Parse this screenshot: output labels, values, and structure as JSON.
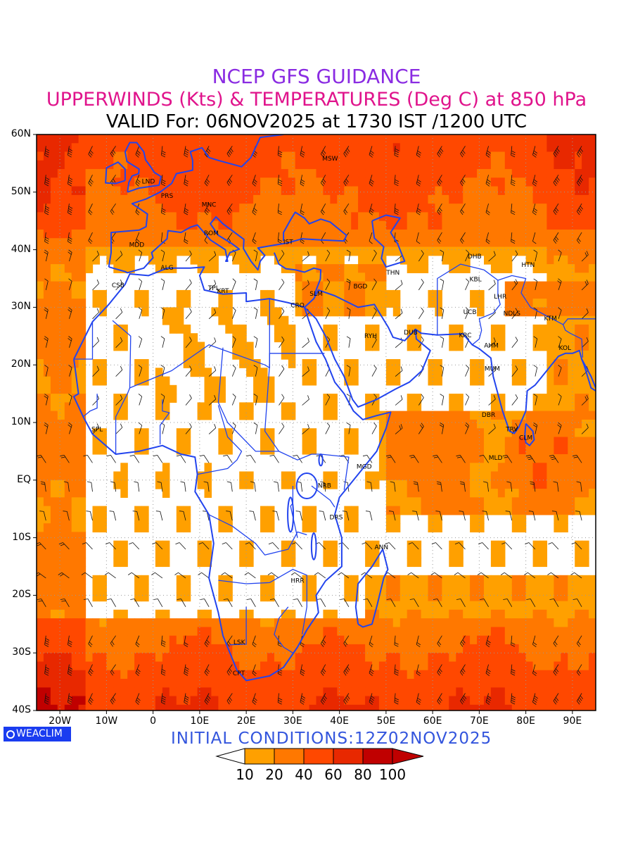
{
  "titles": {
    "line1": "NCEP GFS GUIDANCE",
    "line2": "UPPERWINDS (Kts) & TEMPERATURES (Deg C) at 850 hPa",
    "line3": "VALID For: 06NOV2025 at 1730 IST /1200 UTC"
  },
  "colors": {
    "title1": "#8a2be2",
    "title2": "#e0148c",
    "borders": "#2244ee",
    "init_text": "#3355dd",
    "shade_10": "#ffa000",
    "shade_20": "#ff7800",
    "shade_40": "#ff4800",
    "shade_60": "#e82800",
    "shade_80": "#c00000"
  },
  "lat_labels": [
    "60N",
    "50N",
    "40N",
    "30N",
    "20N",
    "10N",
    "EQ",
    "10S",
    "20S",
    "30S",
    "40S"
  ],
  "lon_labels": [
    "20W",
    "10W",
    "0",
    "10E",
    "20E",
    "30E",
    "40E",
    "50E",
    "60E",
    "70E",
    "80E",
    "90E"
  ],
  "stations": [
    {
      "code": "MSW",
      "lon": 38,
      "lat": 55.5
    },
    {
      "code": "LND",
      "lon": -1,
      "lat": 51.5
    },
    {
      "code": "PRS",
      "lon": 3,
      "lat": 49
    },
    {
      "code": "MNC",
      "lon": 12,
      "lat": 47.5
    },
    {
      "code": "MDD",
      "lon": -3.5,
      "lat": 40.5
    },
    {
      "code": "ROM",
      "lon": 12.5,
      "lat": 42.5
    },
    {
      "code": "IST",
      "lon": 29,
      "lat": 41
    },
    {
      "code": "ALG",
      "lon": 3,
      "lat": 36.5
    },
    {
      "code": "CSB",
      "lon": -7.5,
      "lat": 33.5
    },
    {
      "code": "TPL",
      "lon": 13,
      "lat": 33
    },
    {
      "code": "KRT",
      "lon": 15,
      "lat": 32.5
    },
    {
      "code": "CRO",
      "lon": 31,
      "lat": 30
    },
    {
      "code": "SLM",
      "lon": 35,
      "lat": 32
    },
    {
      "code": "BGD",
      "lon": 44.5,
      "lat": 33.3
    },
    {
      "code": "THN",
      "lon": 51.5,
      "lat": 35.7
    },
    {
      "code": "DHB",
      "lon": 69,
      "lat": 38.5
    },
    {
      "code": "KBL",
      "lon": 69.2,
      "lat": 34.5
    },
    {
      "code": "HTN",
      "lon": 80.5,
      "lat": 37
    },
    {
      "code": "LHR",
      "lon": 74.5,
      "lat": 31.5
    },
    {
      "code": "UCB",
      "lon": 68,
      "lat": 28.8
    },
    {
      "code": "NDLS",
      "lon": 77,
      "lat": 28.6
    },
    {
      "code": "KTM",
      "lon": 85.3,
      "lat": 27.7
    },
    {
      "code": "RYH",
      "lon": 46.7,
      "lat": 24.7
    },
    {
      "code": "DUB",
      "lon": 55.3,
      "lat": 25.3
    },
    {
      "code": "KRC",
      "lon": 67,
      "lat": 24.8
    },
    {
      "code": "AHM",
      "lon": 72.6,
      "lat": 23
    },
    {
      "code": "KOL",
      "lon": 88.4,
      "lat": 22.6
    },
    {
      "code": "MUM",
      "lon": 72.8,
      "lat": 19
    },
    {
      "code": "DBR",
      "lon": 72,
      "lat": 11
    },
    {
      "code": "TRV",
      "lon": 77,
      "lat": 8.5
    },
    {
      "code": "CLM",
      "lon": 80,
      "lat": 7
    },
    {
      "code": "SPL",
      "lon": -12,
      "lat": 8.5
    },
    {
      "code": "MLD",
      "lon": 73.5,
      "lat": 3.5
    },
    {
      "code": "MGD",
      "lon": 45.3,
      "lat": 2
    },
    {
      "code": "NRB",
      "lon": 36.8,
      "lat": -1.3
    },
    {
      "code": "DRS",
      "lon": 39.3,
      "lat": -6.8
    },
    {
      "code": "ANN",
      "lon": 49,
      "lat": -12
    },
    {
      "code": "HRR",
      "lon": 31,
      "lat": -17.8
    },
    {
      "code": "LSK",
      "lon": 18.5,
      "lat": -28.5
    },
    {
      "code": "CPT",
      "lon": 18.4,
      "lat": -33.9
    }
  ],
  "branding": {
    "logo": "WEACLIM"
  },
  "init_conditions": "INITIAL  CONDITIONS:12Z02NOV2025",
  "legend": {
    "ticks": [
      "10",
      "20",
      "40",
      "60",
      "80",
      "100"
    ],
    "colors": [
      "#ffa000",
      "#ff7800",
      "#ff4800",
      "#e82800",
      "#c00000"
    ]
  }
}
